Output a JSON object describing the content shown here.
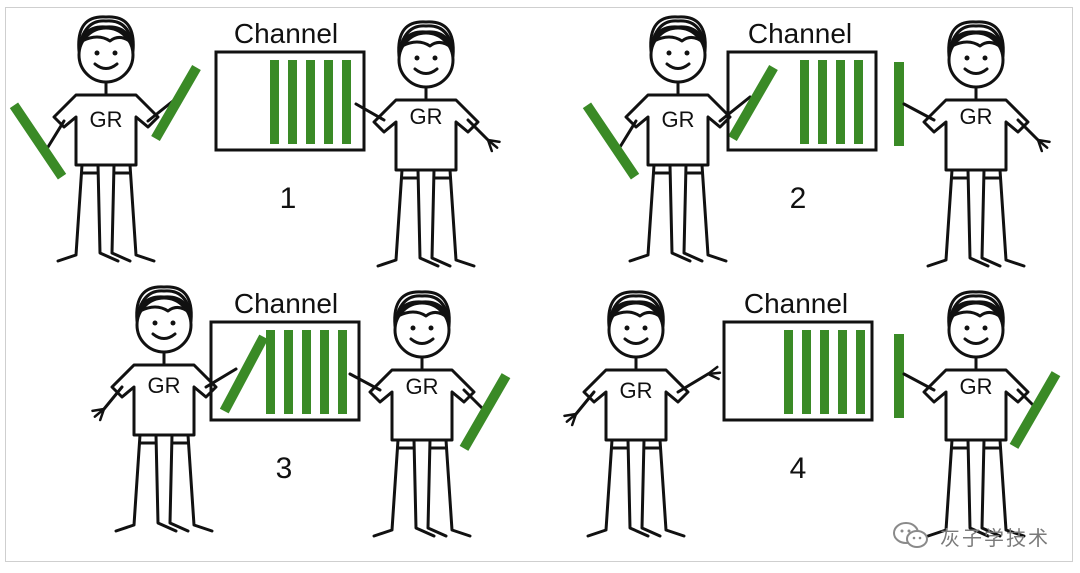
{
  "labels": {
    "channel": "Channel",
    "goroutine": "GR"
  },
  "panels": [
    {
      "number": "1"
    },
    {
      "number": "2"
    },
    {
      "number": "3"
    },
    {
      "number": "4"
    }
  ],
  "watermark": {
    "text": "灰子学技术",
    "icon": "wechat-icon"
  },
  "colors": {
    "item": "#3a8a26",
    "stroke": "#111111"
  }
}
